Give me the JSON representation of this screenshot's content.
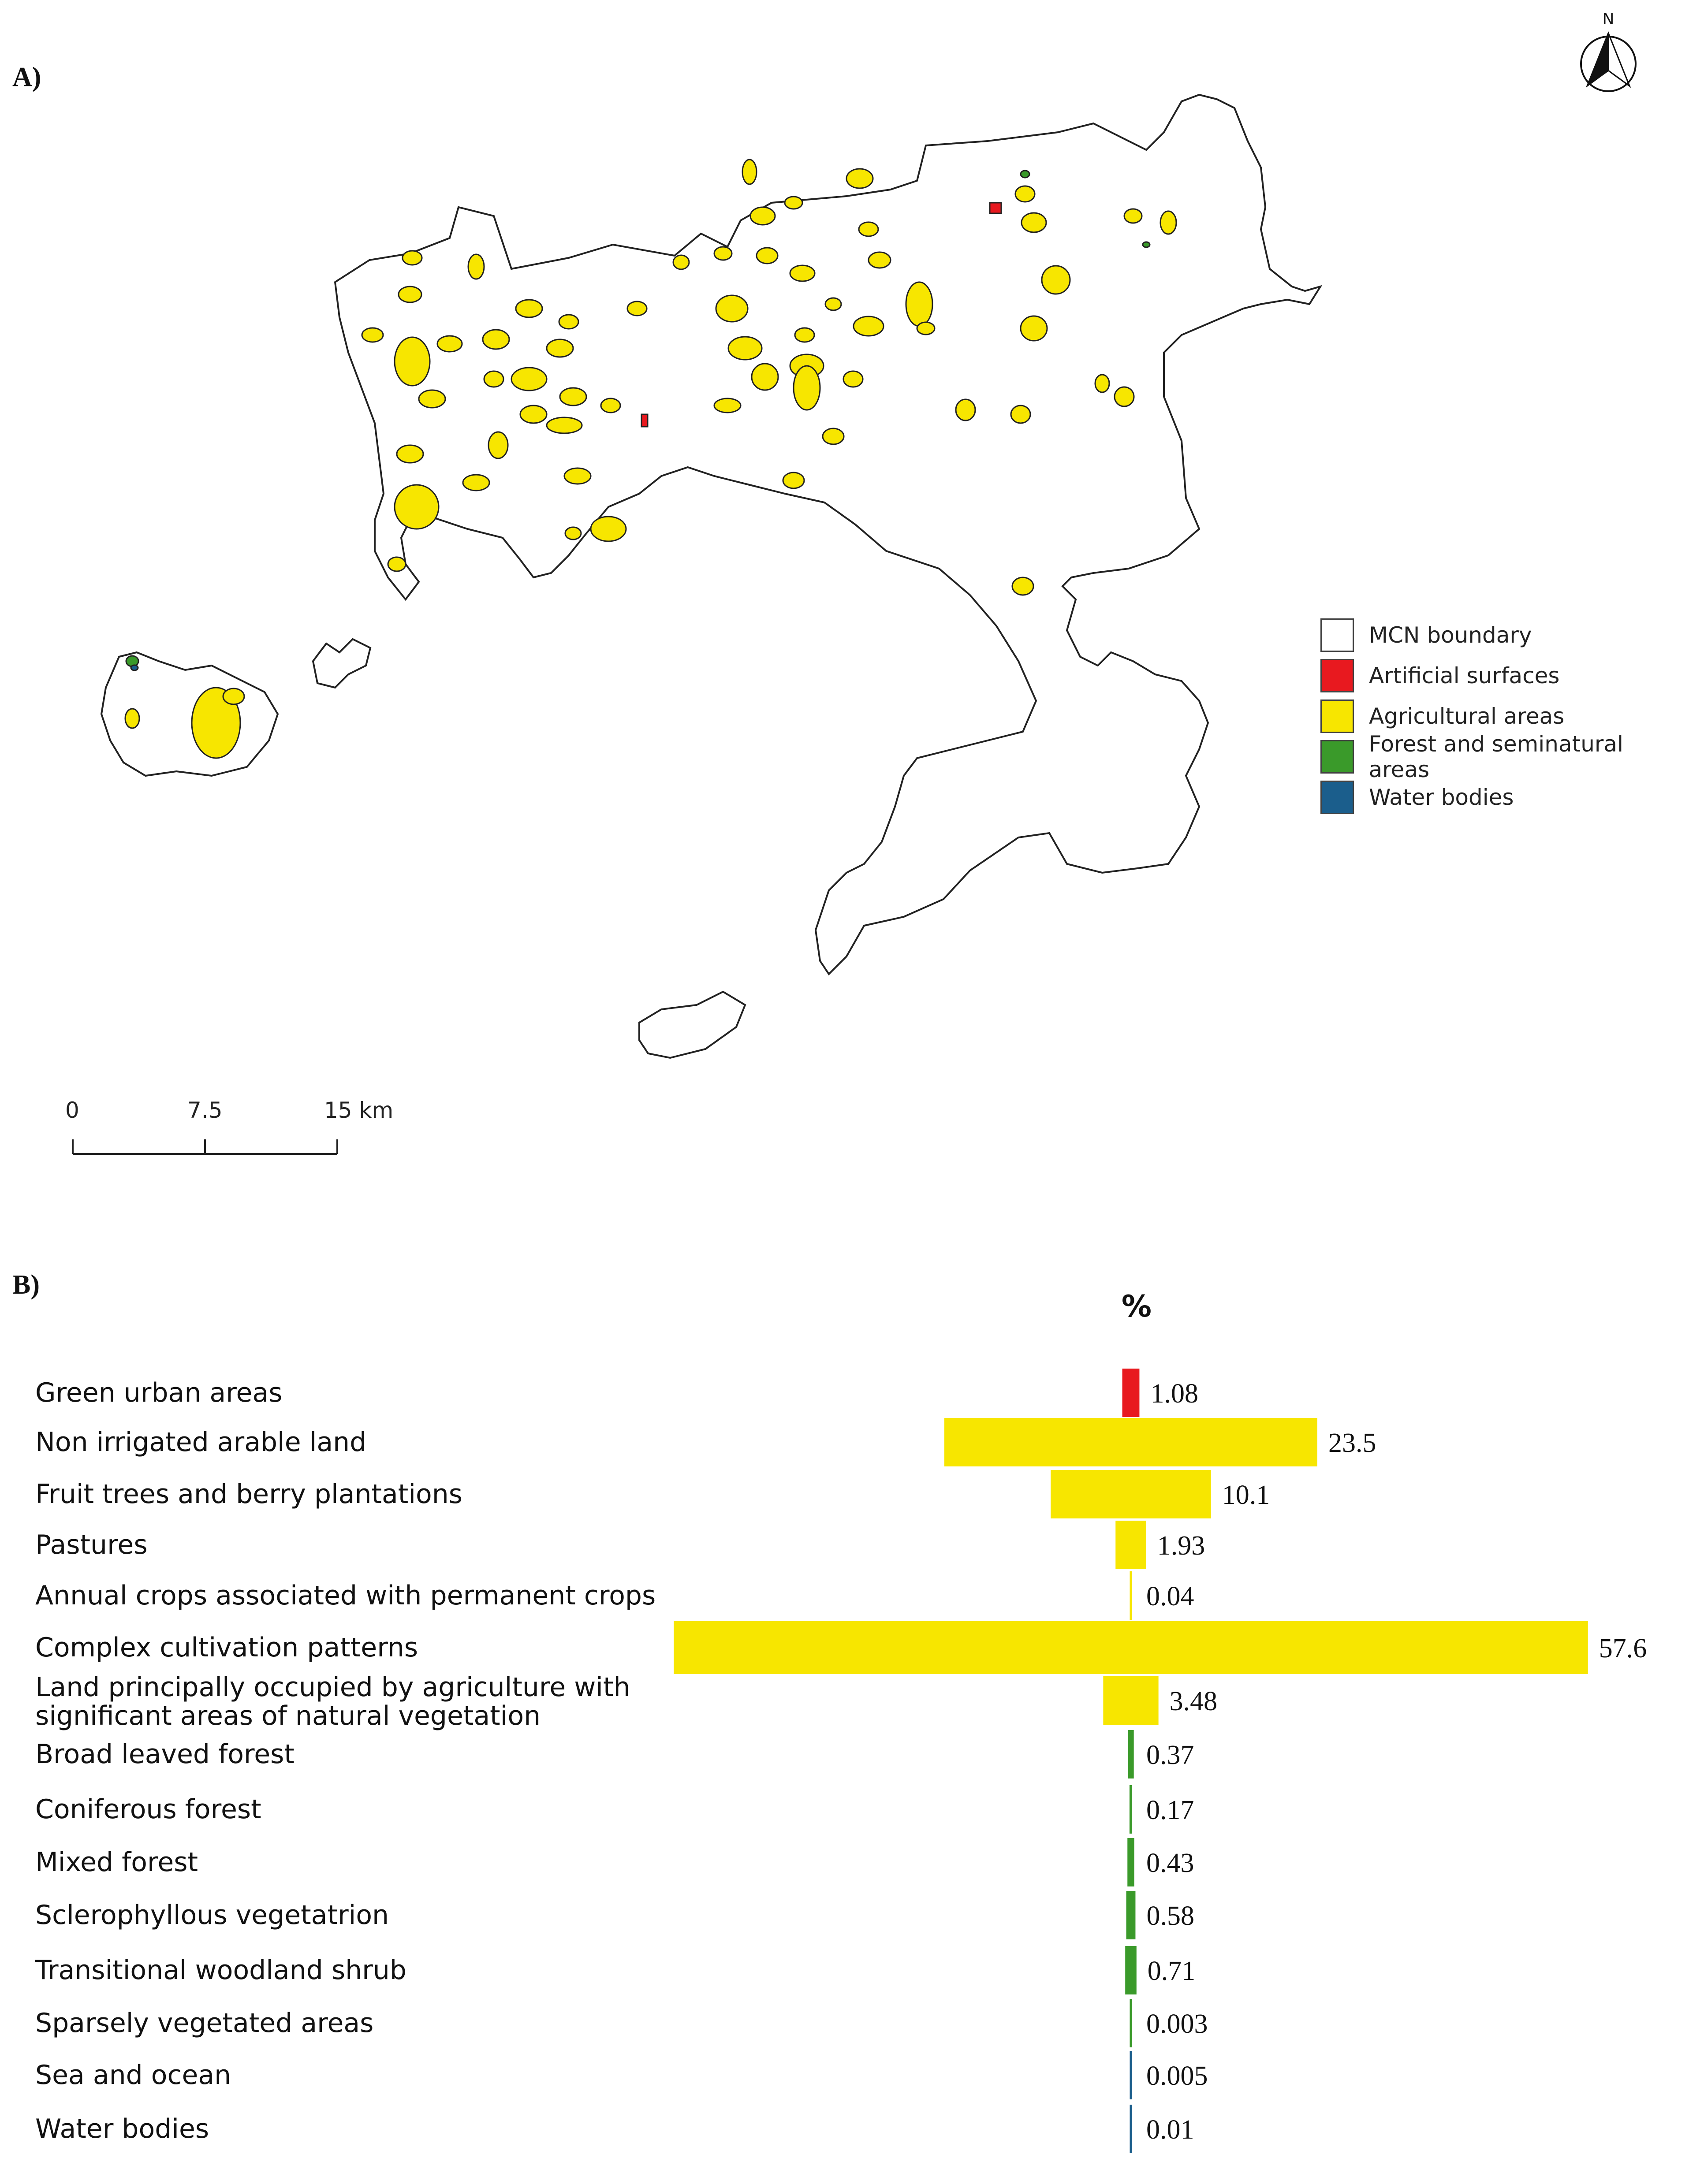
{
  "map": {
    "panel_label": "A)",
    "north_arrow_label": "N",
    "legend": [
      {
        "label": "MCN boundary",
        "color": "#ffffff"
      },
      {
        "label": "Artificial surfaces",
        "color": "#e8191f"
      },
      {
        "label": "Agricultural areas",
        "color": "#f7e600"
      },
      {
        "label": "Forest and seminatural areas",
        "color": "#3a9a2a"
      },
      {
        "label": "Water bodies",
        "color": "#1b5e8c"
      }
    ],
    "scale_bar": {
      "labels": [
        "0",
        "7.5",
        "15 km"
      ]
    }
  },
  "chart": {
    "panel_label": "B)"
  },
  "chart_data": {
    "type": "bar",
    "orientation": "horizontal",
    "centered": true,
    "title": "%",
    "categories": [
      "Green urban areas",
      "Non irrigated arable land",
      "Fruit trees and berry plantations",
      "Pastures",
      "Annual crops associated with permanent crops",
      "Complex cultivation patterns",
      "Land principally occupied by agriculture with significant areas of natural vegetation",
      "Broad leaved forest",
      "Coniferous forest",
      "Mixed forest",
      "Sclerophyllous vegetatrion",
      "Transitional woodland shrub",
      "Sparsely vegetated areas",
      "Sea and ocean",
      "Water bodies"
    ],
    "values": [
      1.08,
      23.5,
      10.1,
      1.93,
      0.04,
      57.6,
      3.48,
      0.37,
      0.17,
      0.43,
      0.58,
      0.71,
      0.003,
      0.005,
      0.01
    ],
    "value_labels": [
      "1.08",
      "23.5",
      "10.1",
      "1.93",
      "0.04",
      "57.6",
      "3.48",
      "0.37",
      "0.17",
      "0.43",
      "0.58",
      "0.71",
      "0.003",
      "0.005",
      "0.01"
    ],
    "bar_colors": [
      "#e8191f",
      "#f7e600",
      "#f7e600",
      "#f7e600",
      "#f7e600",
      "#f7e600",
      "#f7e600",
      "#3a9a2a",
      "#3a9a2a",
      "#3a9a2a",
      "#3a9a2a",
      "#3a9a2a",
      "#3a9a2a",
      "#1b5e8c",
      "#1b5e8c"
    ],
    "grid": false,
    "legend": "none"
  }
}
